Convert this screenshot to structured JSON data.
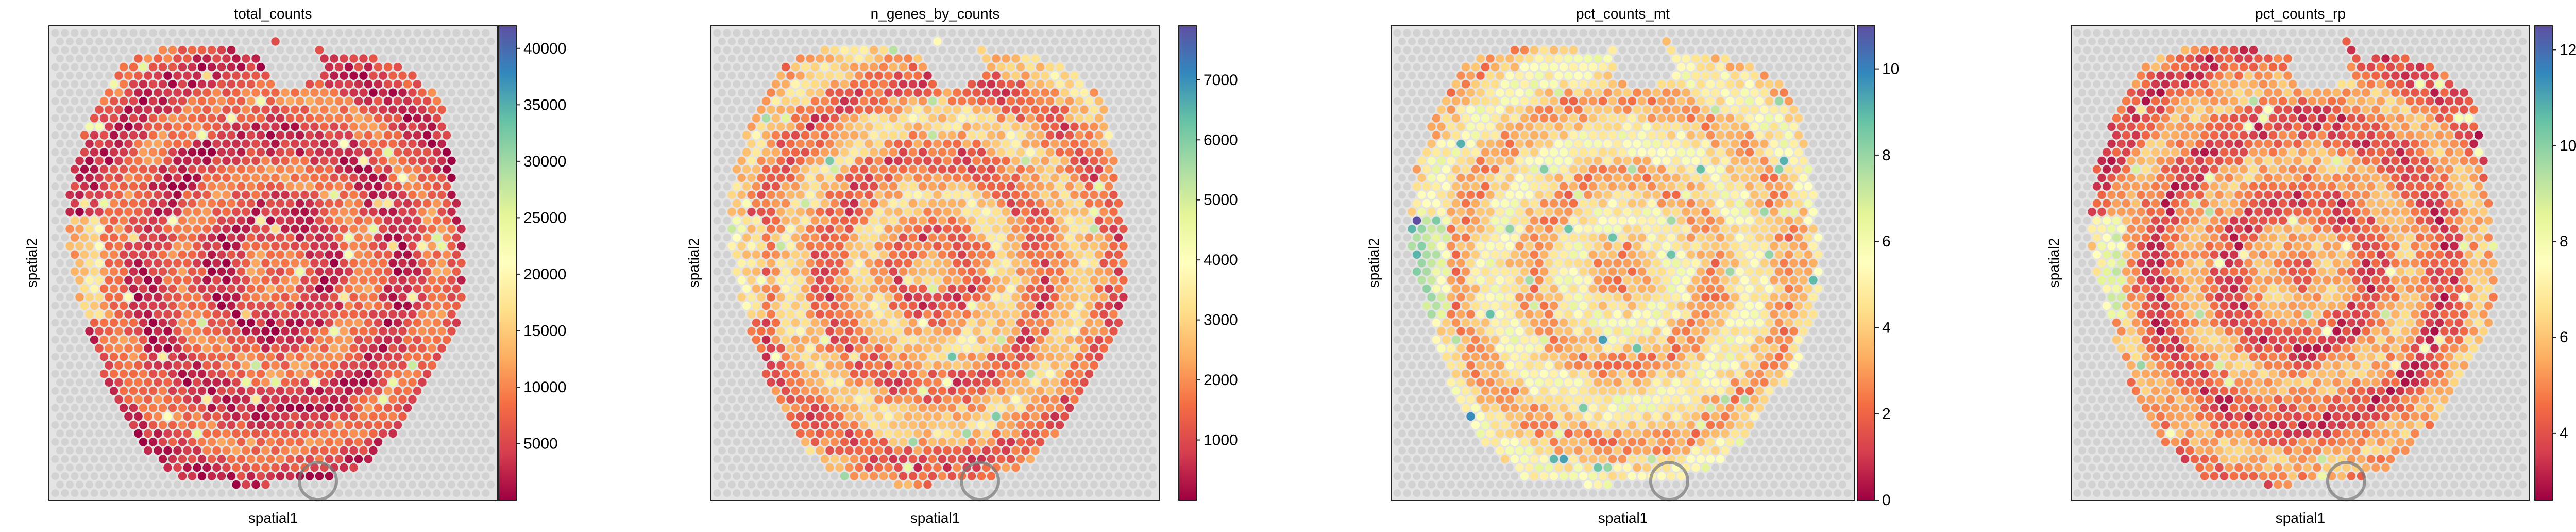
{
  "figure": {
    "background": "#ffffff"
  },
  "chart_data": [
    {
      "type": "heatmap",
      "subtype": "spatial spot map over tissue image",
      "title": "total_counts",
      "xlabel": "spatial1",
      "ylabel": "spatial2",
      "colormap": "Spectral",
      "colorbar": {
        "min": 0,
        "max": 42000,
        "ticks": [
          5000,
          10000,
          15000,
          20000,
          25000,
          30000,
          35000,
          40000
        ],
        "tick_labels": [
          "5000",
          "10000",
          "15000",
          "20000",
          "25000",
          "30000",
          "35000",
          "40000"
        ]
      },
      "spot_value_summary": {
        "typical_fraction_of_range": 0.14,
        "spread": 0.09
      }
    },
    {
      "type": "heatmap",
      "subtype": "spatial spot map over tissue image",
      "title": "n_genes_by_counts",
      "xlabel": "spatial1",
      "ylabel": "spatial2",
      "colormap": "Spectral",
      "colorbar": {
        "min": 0,
        "max": 7900,
        "ticks": [
          1000,
          2000,
          3000,
          4000,
          5000,
          6000,
          7000
        ],
        "tick_labels": [
          "1000",
          "2000",
          "3000",
          "4000",
          "5000",
          "6000",
          "7000"
        ]
      },
      "spot_value_summary": {
        "typical_fraction_of_range": 0.27,
        "spread": 0.12
      }
    },
    {
      "type": "heatmap",
      "subtype": "spatial spot map over tissue image",
      "title": "pct_counts_mt",
      "xlabel": "spatial1",
      "ylabel": "spatial2",
      "colormap": "Spectral",
      "colorbar": {
        "min": 0,
        "max": 11,
        "ticks": [
          0,
          2,
          4,
          6,
          8,
          10
        ],
        "tick_labels": [
          "0",
          "2",
          "4",
          "6",
          "8",
          "10"
        ]
      },
      "spot_value_summary": {
        "typical_fraction_of_range": 0.38,
        "spread": 0.12
      }
    },
    {
      "type": "heatmap",
      "subtype": "spatial spot map over tissue image",
      "title": "pct_counts_rp",
      "xlabel": "spatial1",
      "ylabel": "spatial2",
      "colormap": "Spectral",
      "colorbar": {
        "min": 2.6,
        "max": 12.5,
        "ticks": [
          4,
          6,
          8,
          10,
          12
        ],
        "tick_labels": [
          "4",
          "6",
          "8",
          "10",
          "12"
        ]
      },
      "spot_value_summary": {
        "typical_fraction_of_range": 0.22,
        "spread": 0.11
      }
    }
  ]
}
